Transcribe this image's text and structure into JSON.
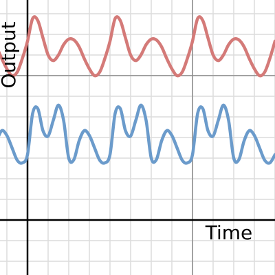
{
  "chart_data": {
    "type": "line",
    "xlabel": "Time",
    "ylabel": "Output",
    "xlim": [
      -1.3333,
      12
    ],
    "ylim": [
      -2.6667,
      10.6667
    ],
    "xticks": [
      -1,
      0,
      1,
      2,
      3,
      4,
      5,
      6,
      7,
      8,
      9,
      10,
      11,
      12
    ],
    "yticks": [
      -2,
      -1,
      0,
      1,
      2,
      3,
      4,
      5,
      6,
      7,
      8,
      9,
      10
    ],
    "major_xticks": [
      8
    ],
    "major_yticks": [
      7
    ],
    "grid": true,
    "x": [
      -1.5,
      -1.25,
      -1,
      -0.75,
      -0.5,
      -0.25,
      0,
      0.25,
      0.5,
      0.75,
      1,
      1.25,
      1.5,
      1.75,
      2,
      2.25,
      2.5,
      2.75,
      3,
      3.25,
      3.5,
      3.75,
      4,
      4.25,
      4.5,
      4.75,
      5,
      5.25,
      5.5,
      5.75,
      6,
      6.25,
      6.5,
      6.75,
      7,
      7.25,
      7.5,
      7.75,
      8,
      8.25,
      8.5,
      8.75,
      9,
      9.25,
      9.5,
      9.75,
      10,
      10.25,
      10.5,
      10.75,
      11,
      11.25,
      11.5,
      11.75,
      12
    ],
    "series": [
      {
        "color": "#d47a78",
        "values": [
          8.4,
          7.83,
          7.33,
          7,
          7.17,
          7.83,
          8.67,
          9.77,
          9.67,
          8.83,
          8,
          7.73,
          8,
          8.5,
          8.77,
          8.73,
          8.4,
          7.83,
          7.33,
          7,
          7.17,
          7.83,
          8.67,
          9.77,
          9.67,
          8.83,
          8,
          7.73,
          8,
          8.5,
          8.77,
          8.73,
          8.4,
          7.83,
          7.33,
          7,
          7.17,
          7.83,
          8.67,
          9.77,
          9.67,
          8.83,
          8,
          7.73,
          8,
          8.5,
          8.77,
          8.73,
          8.4,
          7.83,
          7.33,
          7,
          7.17,
          7.83,
          8.67
        ]
      },
      {
        "color": "#6b9bcb",
        "values": [
          3.83,
          4.33,
          4.1,
          3.5,
          2.9,
          2.77,
          3.17,
          5.17,
          5.4,
          4.33,
          4.07,
          4.83,
          5.57,
          4.83,
          3,
          2.93,
          3.83,
          4.33,
          4.1,
          3.5,
          2.9,
          2.77,
          3.17,
          5.17,
          5.4,
          4.33,
          4.07,
          4.83,
          5.57,
          4.83,
          3,
          2.93,
          3.83,
          4.33,
          4.1,
          3.5,
          2.9,
          2.77,
          3.17,
          5.17,
          5.4,
          4.33,
          4.07,
          4.83,
          5.57,
          4.83,
          3,
          2.93,
          3.83,
          4.33,
          4.1,
          3.5,
          2.9,
          2.77,
          3.17
        ]
      }
    ]
  }
}
